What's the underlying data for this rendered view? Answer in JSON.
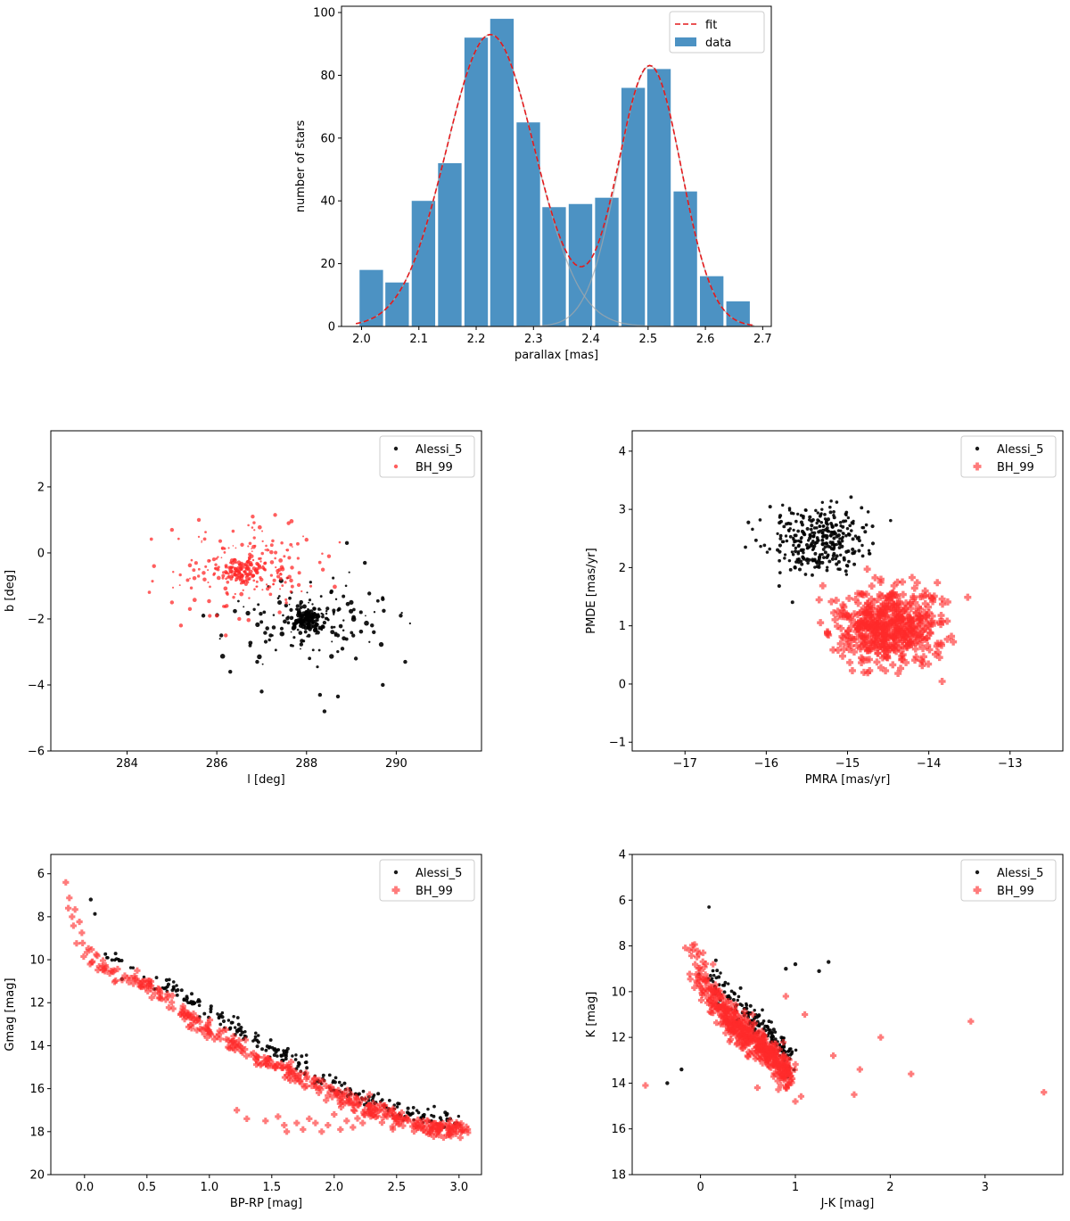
{
  "chart_data": [
    {
      "id": "hist",
      "type": "bar",
      "xlabel": "parallax [mas]",
      "ylabel": "number of stars",
      "xlim": [
        1.965,
        2.715
      ],
      "ylim": [
        0,
        102
      ],
      "xticks": [
        2.0,
        2.1,
        2.2,
        2.3,
        2.4,
        2.5,
        2.6,
        2.7
      ],
      "xtick_labels": [
        "2.0",
        "2.1",
        "2.2",
        "2.3",
        "2.4",
        "2.5",
        "2.6",
        "2.7"
      ],
      "yticks": [
        0,
        20,
        40,
        60,
        80,
        100
      ],
      "ytick_labels": [
        "0",
        "20",
        "40",
        "60",
        "80",
        "100"
      ],
      "bin_width": 0.041,
      "categories": [
        2.017,
        2.062,
        2.108,
        2.154,
        2.2,
        2.245,
        2.291,
        2.336,
        2.382,
        2.428,
        2.474,
        2.519,
        2.565,
        2.611,
        2.657
      ],
      "values": [
        18,
        14,
        40,
        52,
        92,
        98,
        65,
        38,
        39,
        41,
        76,
        82,
        43,
        16,
        8
      ],
      "components": [
        {
          "amp": 93,
          "mu": 2.225,
          "sigma": 0.077
        },
        {
          "amp": 83,
          "mu": 2.503,
          "sigma": 0.055
        }
      ],
      "fit_range": [
        1.99,
        2.685
      ],
      "colors": {
        "bar": "#1f77b4",
        "fit": "#e41a1c",
        "component": "#aaaaaa"
      },
      "legend": [
        {
          "label": "fit",
          "style": "dashed-line"
        },
        {
          "label": "data",
          "style": "patch"
        }
      ],
      "legend_loc": "upper right"
    },
    {
      "id": "lb",
      "type": "scatter",
      "xlabel": "l [deg]",
      "ylabel": "b [deg]",
      "xlim": [
        282.3,
        291.9
      ],
      "ylim": [
        -6,
        3.7
      ],
      "xticks": [
        284,
        286,
        288,
        290
      ],
      "xtick_labels": [
        "284",
        "286",
        "288",
        "290"
      ],
      "yticks": [
        -6,
        -4,
        -2,
        0,
        2
      ],
      "ytick_labels": [
        "−6",
        "−4",
        "−2",
        "0",
        "2"
      ],
      "legend_loc": "upper right",
      "series": [
        {
          "name": "Alessi_5",
          "color": "#000000",
          "marker": "dot",
          "clusters": [
            {
              "cx": 288.05,
              "cy": -2.0,
              "sx": 0.18,
              "sy": 0.16,
              "n": 110,
              "seed": 11,
              "smin": 1.2,
              "smax": 2.8
            },
            {
              "cx": 288.0,
              "cy": -2.1,
              "sx": 0.75,
              "sy": 0.55,
              "n": 150,
              "seed": 12,
              "smin": 0.8,
              "smax": 2.8
            }
          ],
          "points": [
            [
              290.2,
              -3.3
            ],
            [
              289.7,
              -4.0
            ],
            [
              288.7,
              -4.35
            ],
            [
              288.4,
              -4.8
            ],
            [
              288.3,
              -4.3
            ],
            [
              287.0,
              -4.2
            ],
            [
              286.3,
              -3.6
            ],
            [
              285.7,
              -1.9
            ],
            [
              289.7,
              -1.4
            ],
            [
              289.3,
              -0.3
            ],
            [
              288.9,
              0.3
            ],
            [
              288.7,
              -2.5
            ],
            [
              289.5,
              -2.4
            ],
            [
              290.1,
              -1.9
            ],
            [
              289.1,
              -3.2
            ],
            [
              288.8,
              -2.9
            ],
            [
              287.2,
              -2.5
            ],
            [
              286.9,
              -3.3
            ],
            [
              286.1,
              -2.5
            ]
          ]
        },
        {
          "name": "BH_99",
          "color": "#ff2a2a",
          "marker": "dot",
          "clusters": [
            {
              "cx": 286.55,
              "cy": -0.6,
              "sx": 0.2,
              "sy": 0.17,
              "n": 110,
              "seed": 21,
              "smin": 1.2,
              "smax": 2.4
            },
            {
              "cx": 286.6,
              "cy": -0.4,
              "sx": 0.75,
              "sy": 0.55,
              "n": 200,
              "seed": 22,
              "smin": 0.8,
              "smax": 2.4
            }
          ],
          "points": [
            [
              285.0,
              0.7
            ],
            [
              285.6,
              1.0
            ],
            [
              286.8,
              1.1
            ],
            [
              287.3,
              1.15
            ],
            [
              287.6,
              0.9
            ],
            [
              285.0,
              -1.5
            ],
            [
              285.4,
              -1.7
            ],
            [
              286.0,
              -1.9
            ],
            [
              286.5,
              -2.0
            ],
            [
              287.4,
              -1.8
            ],
            [
              284.6,
              -0.4
            ],
            [
              285.2,
              -2.2
            ],
            [
              286.2,
              -2.5
            ],
            [
              288.0,
              0.4
            ],
            [
              288.5,
              -0.1
            ]
          ]
        }
      ]
    },
    {
      "id": "pm",
      "type": "scatter",
      "xlabel": "PMRA [mas/yr]",
      "ylabel": "PMDE [mas/yr]",
      "xlim": [
        -17.65,
        -12.35
      ],
      "ylim": [
        -1.15,
        4.35
      ],
      "xticks": [
        -17,
        -16,
        -15,
        -14,
        -13
      ],
      "xtick_labels": [
        "−17",
        "−16",
        "−15",
        "−14",
        "−13"
      ],
      "yticks": [
        -1,
        0,
        1,
        2,
        3,
        4
      ],
      "ytick_labels": [
        "−1",
        "0",
        "1",
        "2",
        "3",
        "4"
      ],
      "legend_loc": "upper right",
      "series": [
        {
          "name": "Alessi_5",
          "color": "#000000",
          "marker": "dot",
          "clusters": [
            {
              "cx": -15.35,
              "cy": 2.5,
              "sx": 0.3,
              "sy": 0.3,
              "n": 320,
              "seed": 31,
              "smin": 1.6,
              "smax": 2.1
            }
          ],
          "points": []
        },
        {
          "name": "BH_99",
          "color": "#ff2a2a",
          "marker": "plus",
          "clusters": [
            {
              "cx": -14.5,
              "cy": 0.98,
              "sx": 0.32,
              "sy": 0.33,
              "n": 520,
              "seed": 41,
              "smin": 4.0,
              "smax": 4.0
            }
          ],
          "points": []
        }
      ]
    },
    {
      "id": "gcmd",
      "type": "scatter",
      "xlabel": "BP-RP [mag]",
      "ylabel": "Gmag [mag]",
      "xlim": [
        -0.27,
        3.18
      ],
      "ylim": [
        20,
        5.1
      ],
      "y_inverted": true,
      "xticks": [
        0.0,
        0.5,
        1.0,
        1.5,
        2.0,
        2.5,
        3.0
      ],
      "xtick_labels": [
        "0.0",
        "0.5",
        "1.0",
        "1.5",
        "2.0",
        "2.5",
        "3.0"
      ],
      "yticks": [
        6,
        8,
        10,
        12,
        14,
        16,
        18,
        20
      ],
      "ytick_labels": [
        "6",
        "8",
        "10",
        "12",
        "14",
        "16",
        "18",
        "20"
      ],
      "legend_loc": "upper right",
      "series": [
        {
          "name": "Alessi_5",
          "color": "#000000",
          "marker": "dot",
          "curve": [
            [
              0.02,
              6.6
            ],
            [
              0.08,
              8.5
            ],
            [
              0.18,
              9.8
            ],
            [
              0.35,
              10.7
            ],
            [
              0.7,
              11.5
            ],
            [
              1.0,
              12.6
            ],
            [
              1.4,
              14.0
            ],
            [
              1.8,
              15.4
            ],
            [
              2.2,
              16.6
            ],
            [
              2.6,
              17.3
            ],
            [
              3.0,
              17.8
            ]
          ],
          "jitter_x": 0.025,
          "jitter_y": 0.2,
          "offset_y": -0.2,
          "n": 260,
          "seed": 51,
          "smin": 1.7,
          "smax": 2.1,
          "points": [
            [
              0.3,
              10.9
            ],
            [
              0.05,
              7.2
            ]
          ]
        },
        {
          "name": "BH_99",
          "color": "#ff2a2a",
          "marker": "plus",
          "curve": [
            [
              -0.14,
              6.5
            ],
            [
              -0.1,
              7.8
            ],
            [
              0.0,
              9.3
            ],
            [
              0.2,
              10.5
            ],
            [
              0.5,
              11.0
            ],
            [
              0.8,
              12.3
            ],
            [
              1.1,
              13.6
            ],
            [
              1.5,
              14.8
            ],
            [
              1.9,
              15.8
            ],
            [
              2.3,
              16.9
            ],
            [
              2.7,
              17.6
            ],
            [
              3.05,
              17.9
            ]
          ],
          "jitter_x": 0.025,
          "jitter_y": 0.22,
          "offset_y": 0.1,
          "n": 420,
          "seed": 61,
          "smin": 3.6,
          "smax": 3.6,
          "points": [
            [
              1.22,
              17.0
            ],
            [
              1.3,
              17.4
            ],
            [
              1.45,
              17.5
            ],
            [
              1.55,
              17.3
            ],
            [
              1.6,
              17.7
            ],
            [
              1.62,
              18.0
            ],
            [
              1.7,
              17.6
            ],
            [
              1.75,
              17.9
            ],
            [
              1.8,
              17.4
            ],
            [
              1.85,
              17.6
            ],
            [
              1.9,
              18.0
            ],
            [
              1.95,
              17.7
            ],
            [
              2.0,
              17.2
            ],
            [
              2.05,
              17.9
            ],
            [
              2.1,
              17.5
            ],
            [
              2.15,
              17.8
            ],
            [
              2.2,
              16.7
            ],
            [
              2.8,
              17.6
            ],
            [
              2.95,
              17.8
            ],
            [
              3.07,
              17.9
            ],
            [
              -0.15,
              6.4
            ],
            [
              -0.1,
              8.0
            ],
            [
              -0.13,
              7.6
            ]
          ]
        }
      ]
    },
    {
      "id": "kcmd",
      "type": "scatter",
      "xlabel": "J-K [mag]",
      "ylabel": "K [mag]",
      "xlim": [
        -0.72,
        3.82
      ],
      "ylim": [
        18,
        4
      ],
      "y_inverted": true,
      "xticks": [
        0,
        1,
        2,
        3
      ],
      "xtick_labels": [
        "0",
        "1",
        "2",
        "3"
      ],
      "yticks": [
        4,
        6,
        8,
        10,
        12,
        14,
        16,
        18
      ],
      "ytick_labels": [
        "4",
        "6",
        "8",
        "10",
        "12",
        "14",
        "16",
        "18"
      ],
      "legend_loc": "upper right",
      "series": [
        {
          "name": "Alessi_5",
          "color": "#000000",
          "marker": "dot",
          "curve": [
            [
              0.0,
              6.6
            ],
            [
              0.05,
              8.5
            ],
            [
              0.2,
              10.0
            ],
            [
              0.4,
              10.8
            ],
            [
              0.6,
              11.6
            ],
            [
              0.8,
              12.4
            ],
            [
              0.95,
              13.5
            ]
          ],
          "jitter_x": 0.05,
          "jitter_y": 0.25,
          "offset_y": -0.2,
          "n": 180,
          "seed": 71,
          "smin": 1.7,
          "smax": 2.1,
          "points": [
            [
              -0.35,
              14.0
            ],
            [
              -0.2,
              13.4
            ],
            [
              1.0,
              8.8
            ],
            [
              1.35,
              8.7
            ],
            [
              1.25,
              9.1
            ],
            [
              0.9,
              9.0
            ]
          ]
        },
        {
          "name": "BH_99",
          "color": "#ff2a2a",
          "marker": "plus",
          "curve": [
            [
              -0.1,
              6.8
            ],
            [
              -0.08,
              8.0
            ],
            [
              0.05,
              9.5
            ],
            [
              0.25,
              10.8
            ],
            [
              0.5,
              11.8
            ],
            [
              0.75,
              12.6
            ],
            [
              0.9,
              13.3
            ],
            [
              0.92,
              14.0
            ]
          ],
          "jitter_x": 0.06,
          "jitter_y": 0.3,
          "offset_y": 0.2,
          "n": 520,
          "seed": 81,
          "smin": 3.6,
          "smax": 3.6,
          "points": [
            [
              -0.58,
              14.1
            ],
            [
              3.62,
              14.4
            ],
            [
              2.85,
              11.3
            ],
            [
              2.22,
              13.6
            ],
            [
              1.9,
              12.0
            ],
            [
              1.68,
              13.4
            ],
            [
              1.62,
              14.5
            ],
            [
              1.4,
              12.8
            ],
            [
              1.1,
              11.0
            ],
            [
              0.9,
              10.2
            ],
            [
              1.0,
              14.8
            ],
            [
              0.6,
              14.2
            ],
            [
              0.55,
              11.0
            ]
          ]
        }
      ]
    }
  ]
}
